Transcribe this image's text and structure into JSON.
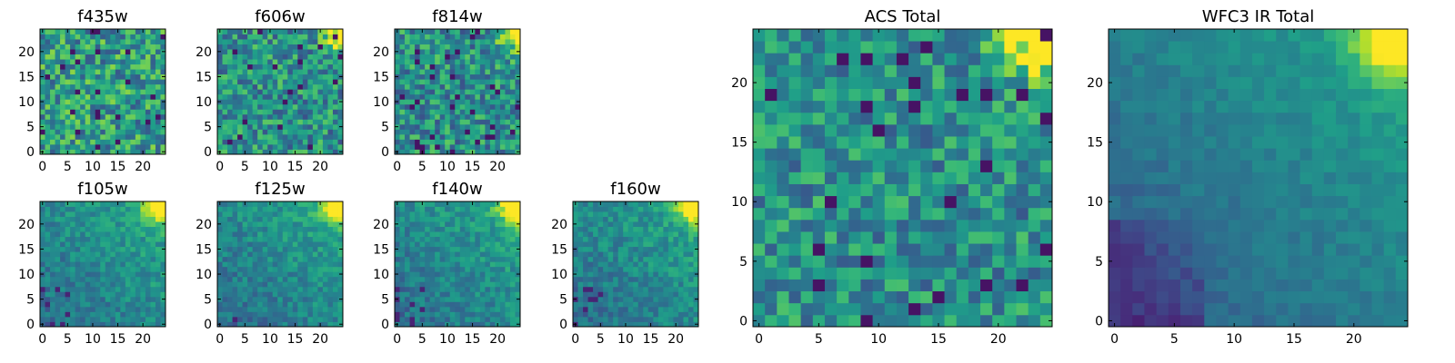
{
  "chart_data": [
    {
      "type": "heatmap",
      "title": "f435w",
      "x": {
        "ticks": [
          0,
          5,
          10,
          15,
          20
        ],
        "range": [
          -0.5,
          24.5
        ]
      },
      "y": {
        "ticks": [
          0,
          5,
          10,
          15,
          20
        ],
        "range": [
          -0.5,
          24.5
        ]
      },
      "grid": false,
      "colormap": "viridis",
      "values": []
    },
    {
      "type": "heatmap",
      "title": "f606w",
      "x": {
        "ticks": [
          0,
          5,
          10,
          15,
          20
        ],
        "range": [
          -0.5,
          24.5
        ]
      },
      "y": {
        "ticks": [
          0,
          5,
          10,
          15,
          20
        ],
        "range": [
          -0.5,
          24.5
        ]
      },
      "grid": false,
      "colormap": "viridis",
      "values": []
    },
    {
      "type": "heatmap",
      "title": "f814w",
      "x": {
        "ticks": [
          0,
          5,
          10,
          15,
          20
        ],
        "range": [
          -0.5,
          24.5
        ]
      },
      "y": {
        "ticks": [
          0,
          5,
          10,
          15,
          20
        ],
        "range": [
          -0.5,
          24.5
        ]
      },
      "grid": false,
      "colormap": "viridis",
      "values": []
    },
    {
      "type": "heatmap",
      "title": "f105w",
      "x": {
        "ticks": [
          0,
          5,
          10,
          15,
          20
        ],
        "range": [
          -0.5,
          24.5
        ]
      },
      "y": {
        "ticks": [
          0,
          5,
          10,
          15,
          20
        ],
        "range": [
          -0.5,
          24.5
        ]
      },
      "grid": false,
      "colormap": "viridis",
      "values": []
    },
    {
      "type": "heatmap",
      "title": "f125w",
      "x": {
        "ticks": [
          0,
          5,
          10,
          15,
          20
        ],
        "range": [
          -0.5,
          24.5
        ]
      },
      "y": {
        "ticks": [
          0,
          5,
          10,
          15,
          20
        ],
        "range": [
          -0.5,
          24.5
        ]
      },
      "grid": false,
      "colormap": "viridis",
      "values": []
    },
    {
      "type": "heatmap",
      "title": "f140w",
      "x": {
        "ticks": [
          0,
          5,
          10,
          15,
          20
        ],
        "range": [
          -0.5,
          24.5
        ]
      },
      "y": {
        "ticks": [
          0,
          5,
          10,
          15,
          20
        ],
        "range": [
          -0.5,
          24.5
        ]
      },
      "grid": false,
      "colormap": "viridis",
      "values": []
    },
    {
      "type": "heatmap",
      "title": "f160w",
      "x": {
        "ticks": [
          0,
          5,
          10,
          15,
          20
        ],
        "range": [
          -0.5,
          24.5
        ]
      },
      "y": {
        "ticks": [
          0,
          5,
          10,
          15,
          20
        ],
        "range": [
          -0.5,
          24.5
        ]
      },
      "grid": false,
      "colormap": "viridis",
      "values": []
    },
    {
      "type": "heatmap",
      "title": "ACS Total",
      "x": {
        "ticks": [
          0,
          5,
          10,
          15,
          20
        ],
        "range": [
          -0.5,
          24.5
        ]
      },
      "y": {
        "ticks": [
          0,
          5,
          10,
          15,
          20
        ],
        "range": [
          -0.5,
          24.5
        ]
      },
      "grid": false,
      "colormap": "viridis",
      "values": []
    },
    {
      "type": "heatmap",
      "title": "WFC3 IR Total",
      "x": {
        "ticks": [
          0,
          5,
          10,
          15,
          20
        ],
        "range": [
          -0.5,
          24.5
        ]
      },
      "y": {
        "ticks": [
          0,
          5,
          10,
          15,
          20
        ],
        "range": [
          -0.5,
          24.5
        ]
      },
      "grid": false,
      "colormap": "viridis",
      "values": []
    }
  ]
}
